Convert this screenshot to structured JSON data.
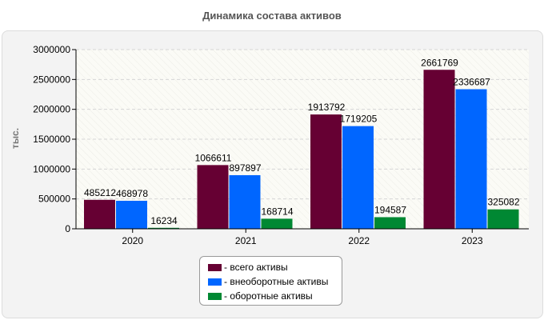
{
  "chart_data": {
    "type": "bar",
    "title": "Динамика состава активов",
    "xlabel": "",
    "ylabel": "тыс.",
    "ylim": [
      0,
      3000000
    ],
    "yticks": [
      "0",
      "500000",
      "1000000",
      "1500000",
      "2000000",
      "2500000",
      "3000000"
    ],
    "categories": [
      "2020",
      "2021",
      "2022",
      "2023"
    ],
    "series": [
      {
        "name": "- всего активы",
        "color": "#660033",
        "values": [
          485212,
          1066611,
          1913792,
          2661769
        ]
      },
      {
        "name": "- внеоборотные активы",
        "color": "#0066ff",
        "values": [
          468978,
          897897,
          1719205,
          2336687
        ]
      },
      {
        "name": "- оборотные активы",
        "color": "#008833",
        "values": [
          16234,
          168714,
          194587,
          325082
        ]
      }
    ],
    "legend_position": "bottom-center",
    "grid": true
  }
}
